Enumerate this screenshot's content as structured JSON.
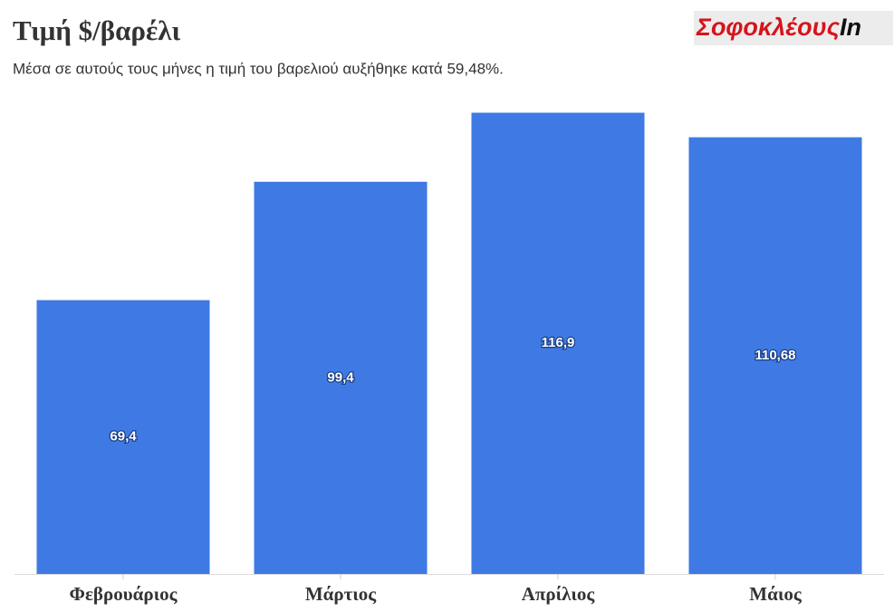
{
  "chart_data": {
    "type": "bar",
    "title": "Τιμή $/βαρέλι",
    "subtitle": "Μέσα σε αυτούς τους μήνες η τιμή του βαρελιού αυξήθηκε κατά 59,48%.",
    "brand": "Σοφοκλέους",
    "brand_suffix": "In",
    "categories": [
      "Φεβρουάριος",
      "Μάρτιος",
      "Απρίλιος",
      "Μάιος"
    ],
    "values": [
      69.4,
      99.4,
      116.9,
      110.68
    ],
    "value_labels": [
      "69,4",
      "99,4",
      "116,9",
      "110,68"
    ],
    "color": "#3f7ae4",
    "ylim": [
      0,
      120
    ]
  }
}
